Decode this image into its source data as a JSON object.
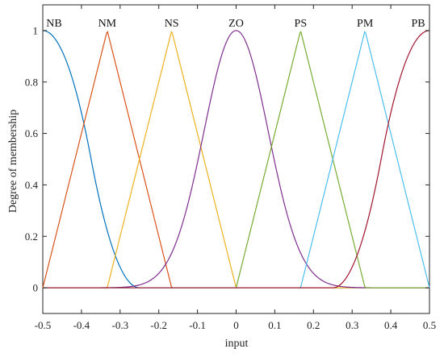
{
  "chart_data": {
    "type": "line",
    "title": "",
    "xlabel": "input",
    "ylabel": "Degree of membership",
    "xlim": [
      -0.5,
      0.5
    ],
    "ylim": [
      -0.1,
      1.1
    ],
    "xticks": [
      -0.5,
      -0.4,
      -0.3,
      -0.2,
      -0.1,
      0,
      0.1,
      0.2,
      0.3,
      0.4,
      0.5
    ],
    "xtick_labels": [
      "-0.5",
      "-0.4",
      "-0.3",
      "-0.2",
      "-0.1",
      "0",
      "0.1",
      "0.2",
      "0.3",
      "0.4",
      "0.5"
    ],
    "yticks": [
      0,
      0.2,
      0.4,
      0.6,
      0.8,
      1
    ],
    "ytick_labels": [
      "0",
      "0.2",
      "0.4",
      "0.6",
      "0.8",
      "1"
    ],
    "grid": false,
    "series": [
      {
        "name": "NB",
        "shape": "zmf",
        "params": [
          -0.5,
          -0.25
        ],
        "color": "#0072BD"
      },
      {
        "name": "NM",
        "shape": "trimf",
        "params": [
          -0.5,
          -0.3333,
          -0.1667
        ],
        "color": "#D95319"
      },
      {
        "name": "NS",
        "shape": "trimf",
        "params": [
          -0.3333,
          -0.1667,
          0
        ],
        "color": "#EDB120"
      },
      {
        "name": "ZO",
        "shape": "gaussmf",
        "params": [
          0.0833,
          0
        ],
        "color": "#7E2F8E"
      },
      {
        "name": "PS",
        "shape": "trimf",
        "params": [
          0,
          0.1667,
          0.3333
        ],
        "color": "#77AC30"
      },
      {
        "name": "PM",
        "shape": "trimf",
        "params": [
          0.1667,
          0.3333,
          0.5
        ],
        "color": "#4DBEEE"
      },
      {
        "name": "PB",
        "shape": "smf",
        "params": [
          0.25,
          0.5
        ],
        "color": "#A2142F"
      }
    ]
  }
}
